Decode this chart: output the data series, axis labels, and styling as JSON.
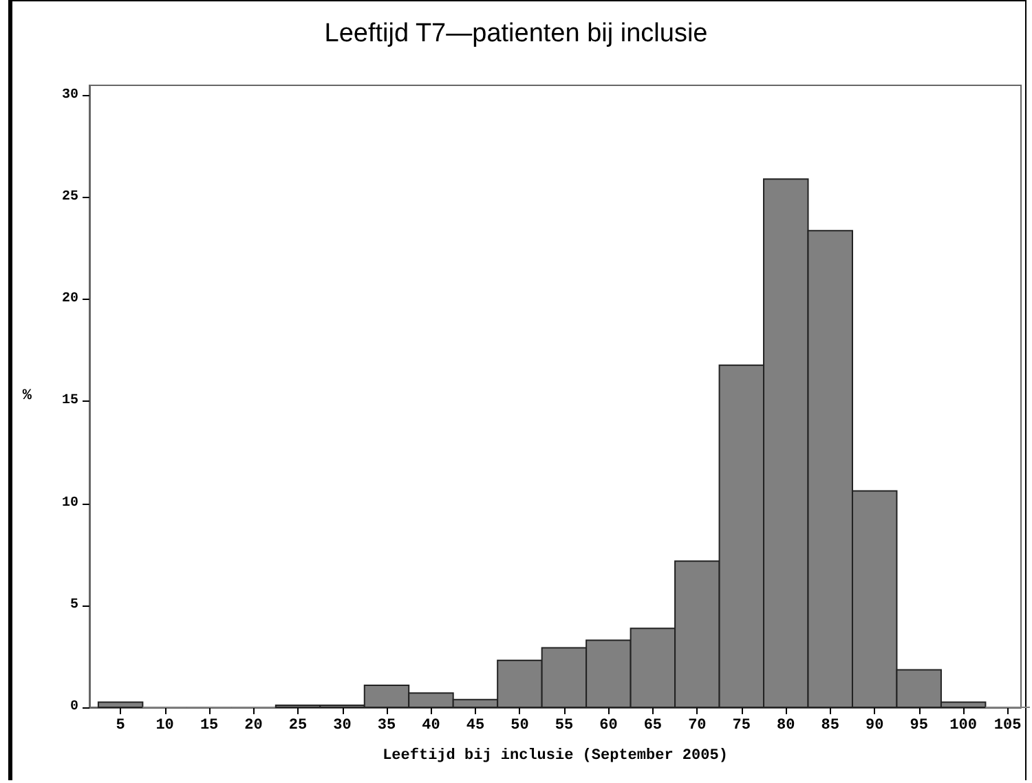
{
  "chart_data": {
    "type": "histogram",
    "title": "Leeftijd T7—patienten bij inclusie",
    "xlabel": "Leeftijd bij inclusie (September 2005)",
    "ylabel": "%",
    "bins": [
      2.5,
      7.5,
      12.5,
      17.5,
      22.5,
      27.5,
      32.5,
      37.5,
      42.5,
      47.5,
      52.5,
      57.5,
      62.5,
      67.5,
      72.5,
      77.5,
      82.5,
      87.5,
      92.5,
      97.5,
      102.5,
      107.5
    ],
    "values": [
      0.25,
      0,
      0,
      0,
      0.1,
      0.1,
      1.08,
      0.7,
      0.38,
      2.3,
      2.92,
      3.29,
      3.87,
      7.17,
      16.78,
      25.9,
      23.37,
      10.61,
      1.84,
      0.25,
      0
    ],
    "color": "#808080",
    "xlim": [
      1.5,
      106.5
    ],
    "xticks": [
      5,
      10,
      15,
      20,
      25,
      30,
      35,
      40,
      45,
      50,
      55,
      60,
      65,
      70,
      75,
      80,
      85,
      90,
      95,
      100,
      105
    ],
    "ylim": [
      0,
      30.5
    ],
    "yticks": [
      0,
      5,
      10,
      15,
      20,
      25,
      30
    ],
    "grid": false
  }
}
